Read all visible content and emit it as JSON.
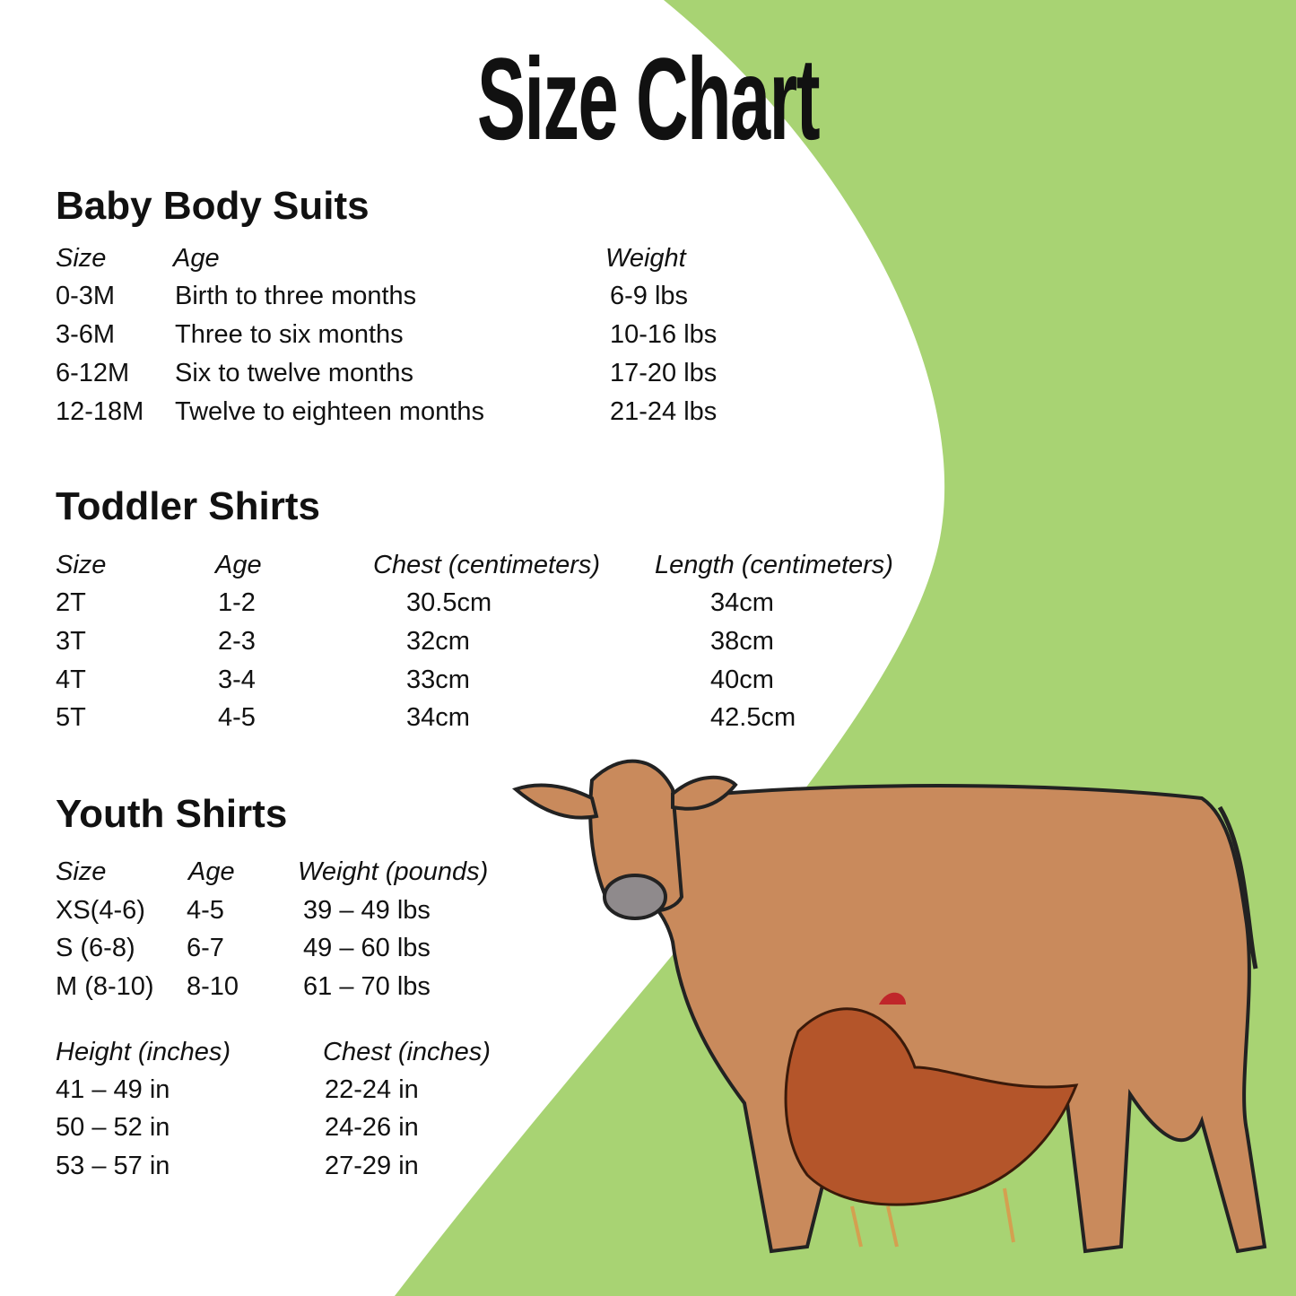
{
  "title": "Size Chart",
  "colors": {
    "background_green": "#a8d373",
    "panel": "#ffffff",
    "text": "#111111"
  },
  "baby": {
    "heading": "Baby Body Suits",
    "headers": [
      "Size",
      "Age",
      "Weight"
    ],
    "rows": [
      [
        "0-3M",
        "Birth to three months",
        "6-9 lbs"
      ],
      [
        "3-6M",
        "Three to six months",
        "10-16 lbs"
      ],
      [
        "6-12M",
        "Six to twelve months",
        "17-20 lbs"
      ],
      [
        "12-18M",
        "Twelve to eighteen months",
        "21-24 lbs"
      ]
    ]
  },
  "toddler": {
    "heading": "Toddler Shirts",
    "headers": [
      "Size",
      "Age",
      "Chest (centimeters)",
      "Length (centimeters)"
    ],
    "rows": [
      [
        "2T",
        "1-2",
        "30.5cm",
        "34cm"
      ],
      [
        "3T",
        "2-3",
        "32cm",
        "38cm"
      ],
      [
        "4T",
        "3-4",
        "33cm",
        "40cm"
      ],
      [
        "5T",
        "4-5",
        "34cm",
        "42.5cm"
      ]
    ]
  },
  "youth": {
    "heading": "Youth Shirts",
    "headers": [
      "Size",
      "Age",
      "Weight (pounds)"
    ],
    "rows": [
      [
        "XS(4-6)",
        "4-5",
        "39 – 49 lbs"
      ],
      [
        "S (6-8)",
        "6-7",
        "49 – 60 lbs"
      ],
      [
        "M (8-10)",
        "8-10",
        "61 – 70 lbs"
      ]
    ],
    "headers2": [
      "Height (inches)",
      "Chest (inches)"
    ],
    "rows2": [
      [
        "41 – 49 in",
        "22-24 in"
      ],
      [
        "50 – 52 in",
        "24-26 in"
      ],
      [
        "53 – 57 in",
        "27-29 in"
      ]
    ]
  },
  "illustration": {
    "subjects": [
      "cow-icon",
      "chicken-icon"
    ]
  }
}
